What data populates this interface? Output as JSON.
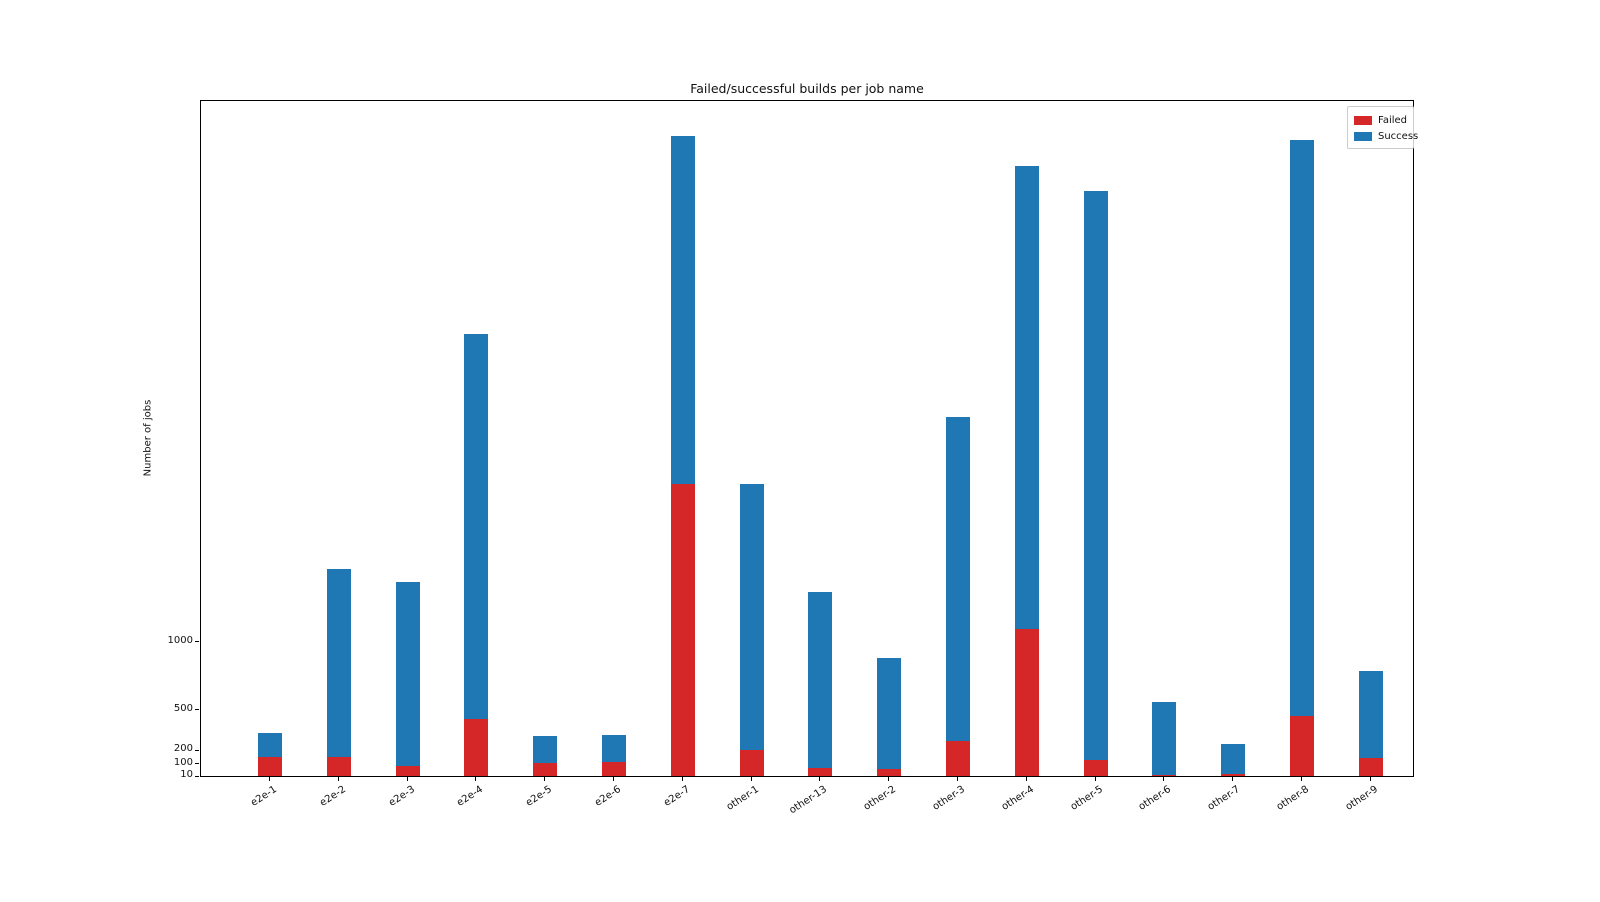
{
  "chart_data": {
    "type": "bar",
    "stacked": true,
    "title": "Failed/successful builds per job name",
    "xlabel": "",
    "ylabel": "Number of jobs",
    "categories": [
      "e2e-1",
      "e2e-2",
      "e2e-3",
      "e2e-4",
      "e2e-5",
      "e2e-6",
      "e2e-7",
      "other-1",
      "other-13",
      "other-2",
      "other-3",
      "other-4",
      "other-5",
      "other-6",
      "other-7",
      "other-8",
      "other-9"
    ],
    "series": [
      {
        "name": "Failed",
        "color": "#d62728",
        "values": [
          140,
          140,
          75,
          420,
          95,
          105,
          2150,
          195,
          60,
          50,
          260,
          1080,
          120,
          10,
          12,
          440,
          135
        ]
      },
      {
        "name": "Success",
        "color": "#1f77b4",
        "values": [
          180,
          1385,
          1355,
          2835,
          197,
          195,
          2565,
          1960,
          1300,
          820,
          2385,
          3415,
          4195,
          535,
          224,
          4245,
          642
        ]
      }
    ],
    "totals": [
      320,
      1525,
      1430,
      3255,
      292,
      300,
      4715,
      2155,
      1360,
      870,
      2645,
      4495,
      4315,
      545,
      236,
      4685,
      777
    ],
    "y_ticks": [
      10,
      100,
      200,
      500,
      1000
    ],
    "ylim": [
      0,
      4990
    ],
    "grid": false,
    "legend_position": "upper right",
    "legend_items": [
      "Failed",
      "Success"
    ]
  }
}
